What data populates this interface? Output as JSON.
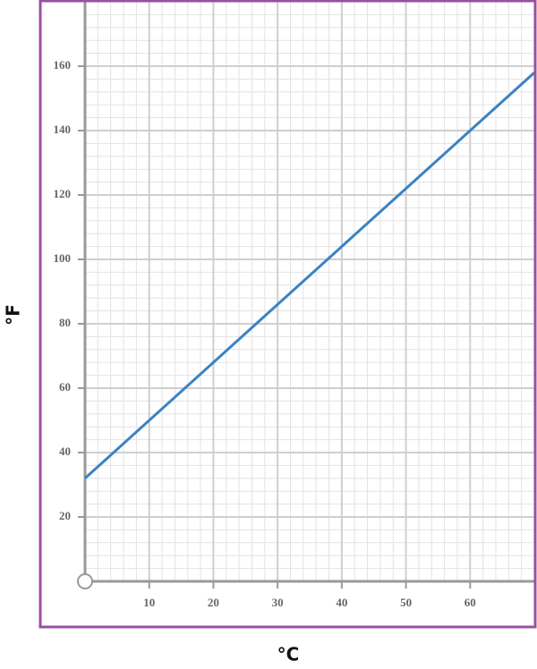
{
  "chart_data": {
    "type": "line",
    "x_label": "°C",
    "y_label": "°F",
    "x": [
      0,
      70
    ],
    "series": [
      {
        "values": [
          32,
          158
        ],
        "color": "#3a82c4"
      }
    ],
    "xlim": [
      0,
      70
    ],
    "ylim": [
      0,
      180
    ],
    "xticks": [
      10,
      20,
      30,
      40,
      50,
      60
    ],
    "yticks": [
      20,
      40,
      60,
      80,
      100,
      120,
      140,
      160
    ],
    "grid": true,
    "frame_color": "#9b4fa3"
  }
}
